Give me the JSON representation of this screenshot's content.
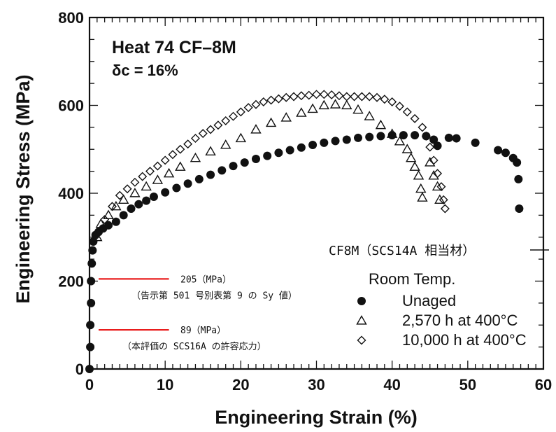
{
  "chart_data": {
    "type": "scatter",
    "xlabel": "Engineering Strain (%)",
    "ylabel": "Engineering Stress (MPa)",
    "xlim": [
      0,
      60
    ],
    "ylim": [
      0,
      800
    ],
    "x_ticks": [
      "0",
      "10",
      "20",
      "30",
      "40",
      "50",
      "60"
    ],
    "y_ticks": [
      "0",
      "200",
      "400",
      "600",
      "800"
    ],
    "annotation_title": "Heat 74 CF–8M",
    "annotation_delta": "δc = 16%",
    "material_note": "CF8M（SCS14A 相当材）",
    "legend_header": "Room Temp.",
    "series": [
      {
        "name": "Unaged",
        "marker": "filled-circle",
        "points": [
          [
            0,
            0
          ],
          [
            0.1,
            50
          ],
          [
            0.1,
            100
          ],
          [
            0.2,
            150
          ],
          [
            0.2,
            200
          ],
          [
            0.3,
            240
          ],
          [
            0.4,
            270
          ],
          [
            0.5,
            290
          ],
          [
            0.8,
            305
          ],
          [
            1.2,
            312
          ],
          [
            1.8,
            320
          ],
          [
            2.5,
            327
          ],
          [
            3.5,
            335
          ],
          [
            4.5,
            350
          ],
          [
            5.5,
            365
          ],
          [
            6.5,
            375
          ],
          [
            7.5,
            383
          ],
          [
            8.5,
            392
          ],
          [
            10,
            402
          ],
          [
            11.5,
            412
          ],
          [
            13,
            422
          ],
          [
            14.5,
            432
          ],
          [
            16,
            442
          ],
          [
            17.5,
            452
          ],
          [
            19,
            462
          ],
          [
            20.5,
            470
          ],
          [
            22,
            478
          ],
          [
            23.5,
            485
          ],
          [
            25,
            492
          ],
          [
            26.5,
            498
          ],
          [
            28,
            504
          ],
          [
            29.5,
            510
          ],
          [
            31,
            515
          ],
          [
            32.5,
            519
          ],
          [
            34,
            522
          ],
          [
            35.5,
            526
          ],
          [
            37,
            528
          ],
          [
            38.5,
            530
          ],
          [
            40,
            532
          ],
          [
            41.5,
            532
          ],
          [
            43,
            532
          ],
          [
            44.5,
            530
          ],
          [
            45.5,
            522
          ],
          [
            46,
            508
          ],
          [
            47.5,
            526
          ],
          [
            48.5,
            525
          ],
          [
            51,
            515
          ],
          [
            54,
            498
          ],
          [
            55,
            492
          ],
          [
            56,
            480
          ],
          [
            56.5,
            470
          ],
          [
            56.7,
            432
          ],
          [
            56.8,
            365
          ]
        ]
      },
      {
        "name": "2,570 h at 400°C",
        "marker": "open-triangle",
        "points": [
          [
            1,
            300
          ],
          [
            1.5,
            330
          ],
          [
            2.5,
            350
          ],
          [
            3.5,
            370
          ],
          [
            4.5,
            385
          ],
          [
            6,
            400
          ],
          [
            7.5,
            415
          ],
          [
            9,
            430
          ],
          [
            10.5,
            445
          ],
          [
            12,
            460
          ],
          [
            14,
            480
          ],
          [
            16,
            495
          ],
          [
            18,
            510
          ],
          [
            20,
            525
          ],
          [
            22,
            545
          ],
          [
            24,
            560
          ],
          [
            26,
            572
          ],
          [
            28,
            583
          ],
          [
            29.5,
            592
          ],
          [
            31,
            600
          ],
          [
            32.5,
            602
          ],
          [
            34,
            600
          ],
          [
            35.5,
            590
          ],
          [
            37,
            575
          ],
          [
            38.5,
            555
          ],
          [
            40,
            535
          ],
          [
            41,
            518
          ],
          [
            42,
            500
          ],
          [
            42.5,
            480
          ],
          [
            43,
            460
          ],
          [
            43.5,
            440
          ],
          [
            43.8,
            410
          ],
          [
            44,
            390
          ],
          [
            45,
            470
          ],
          [
            45.5,
            440
          ],
          [
            46,
            415
          ],
          [
            46.3,
            385
          ]
        ]
      },
      {
        "name": "10,000 h at 400°C",
        "marker": "open-diamond",
        "points": [
          [
            1,
            310
          ],
          [
            2,
            340
          ],
          [
            3,
            370
          ],
          [
            4,
            395
          ],
          [
            5,
            410
          ],
          [
            6,
            425
          ],
          [
            7,
            438
          ],
          [
            8,
            450
          ],
          [
            9,
            462
          ],
          [
            10,
            475
          ],
          [
            11,
            488
          ],
          [
            12,
            500
          ],
          [
            13,
            512
          ],
          [
            14,
            525
          ],
          [
            15,
            536
          ],
          [
            16,
            545
          ],
          [
            17,
            555
          ],
          [
            18,
            565
          ],
          [
            19,
            575
          ],
          [
            20,
            585
          ],
          [
            21,
            595
          ],
          [
            22,
            602
          ],
          [
            23,
            608
          ],
          [
            24,
            612
          ],
          [
            25,
            615
          ],
          [
            26,
            618
          ],
          [
            27,
            620
          ],
          [
            28,
            622
          ],
          [
            29,
            623
          ],
          [
            30,
            625
          ],
          [
            31,
            625
          ],
          [
            32,
            624
          ],
          [
            33,
            622
          ],
          [
            34,
            620
          ],
          [
            35,
            620
          ],
          [
            36,
            620
          ],
          [
            37,
            620
          ],
          [
            38,
            618
          ],
          [
            39,
            614
          ],
          [
            40,
            608
          ],
          [
            41,
            598
          ],
          [
            42,
            585
          ],
          [
            43,
            570
          ],
          [
            44,
            550
          ],
          [
            44.5,
            530
          ],
          [
            45,
            505
          ],
          [
            45.5,
            475
          ],
          [
            46,
            445
          ],
          [
            46.5,
            415
          ],
          [
            46.8,
            385
          ],
          [
            47,
            365
          ]
        ]
      }
    ],
    "reference_lines": [
      {
        "value": 205,
        "label": "205（MPa）",
        "sublabel": "（告示第 501 号別表第 9 の Sy 値）",
        "color": "#e60000"
      },
      {
        "value": 89,
        "label": "89（MPa）",
        "sublabel": "（本評価の SCS16A の許容応力）",
        "color": "#e60000"
      }
    ]
  }
}
